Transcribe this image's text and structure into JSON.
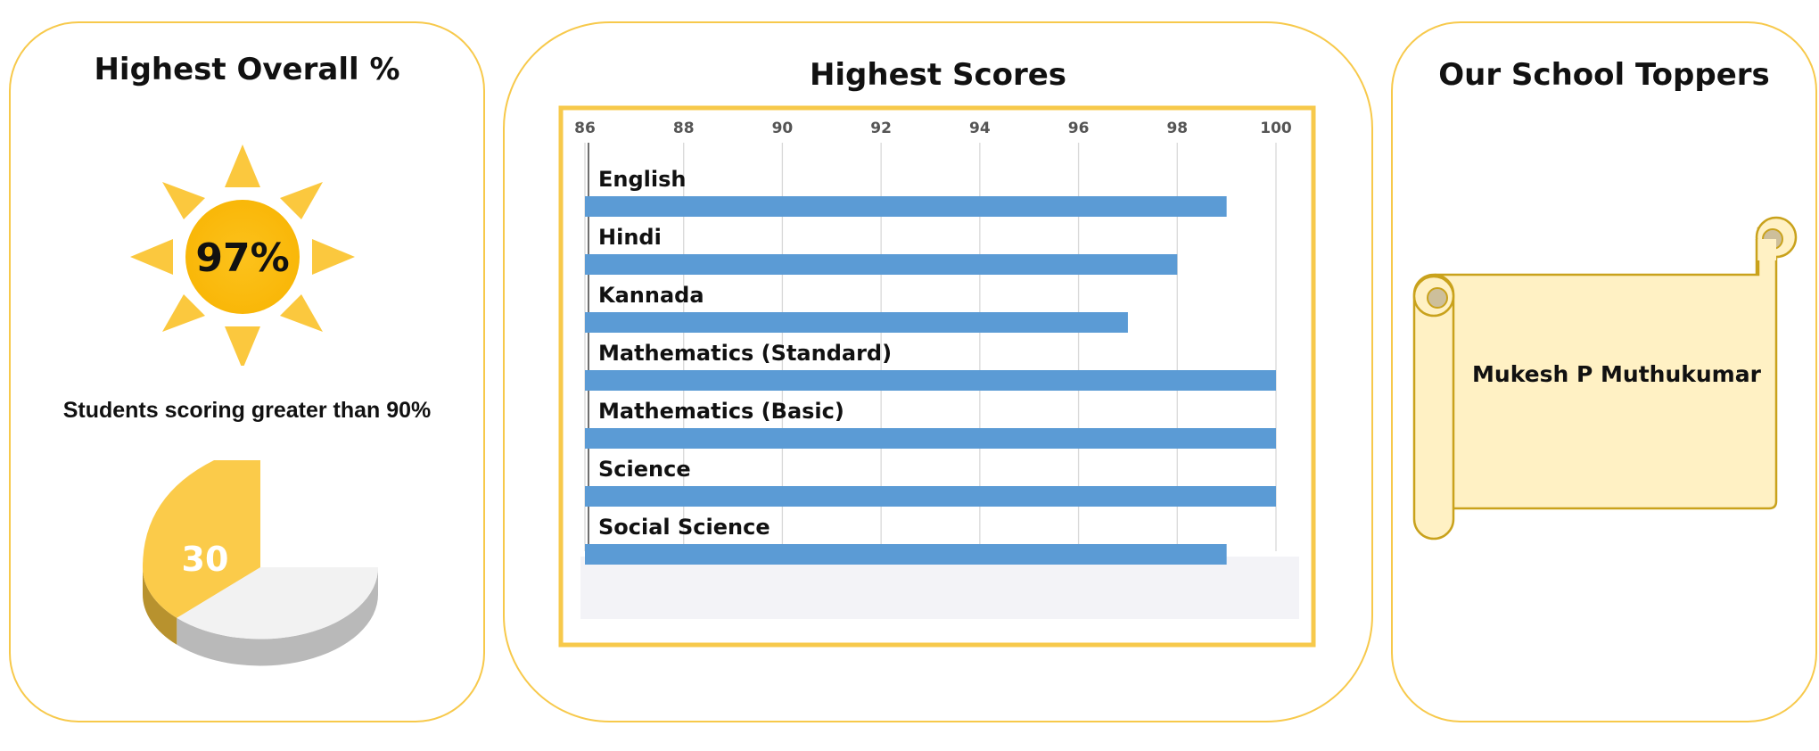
{
  "panels": {
    "overall": {
      "title": "Highest Overall %",
      "value": "97%",
      "subtitle": "Students scoring greater than 90%",
      "pie_label": "30"
    },
    "scores": {
      "title": "Highest Scores"
    },
    "toppers": {
      "title": "Our School Toppers",
      "names": [
        "Mukesh P Muthukumar"
      ]
    }
  },
  "colors": {
    "panel_border": "#f7c94b",
    "bar": "#5b9bd5",
    "sun": "#fcc82e",
    "pie_slice": "#fbcb4a",
    "pie_rest": "#f2f2f2",
    "scroll": "#fff1c4"
  },
  "chart_data": [
    {
      "type": "bar",
      "orientation": "horizontal",
      "title": "Highest Scores",
      "categories": [
        "English",
        "Hindi",
        "Kannada",
        "Mathematics (Standard)",
        "Mathematics (Basic)",
        "Science",
        "Social Science"
      ],
      "values": [
        99,
        98,
        97,
        100,
        100,
        100,
        99
      ],
      "xlim": [
        86,
        100
      ],
      "xticks": [
        86,
        88,
        90,
        92,
        94,
        96,
        98,
        100
      ],
      "grid": true,
      "legend": "none"
    },
    {
      "type": "pie",
      "title": "Students scoring greater than 90%",
      "slices": [
        {
          "label": "30",
          "value": 30
        }
      ],
      "style": "3d"
    }
  ]
}
